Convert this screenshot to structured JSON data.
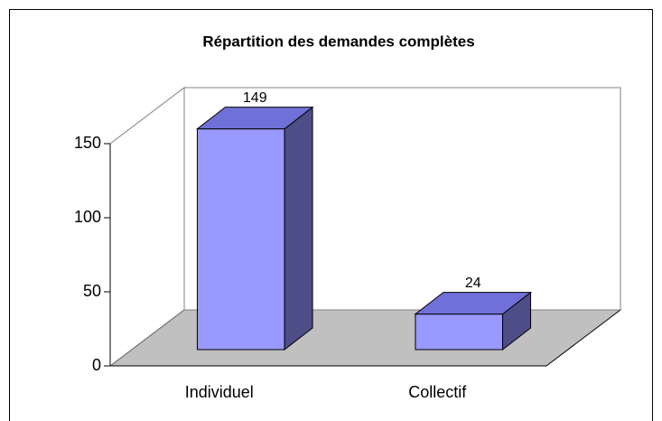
{
  "chart_data": {
    "type": "bar3d",
    "title": "Répartition des demandes complètes",
    "categories": [
      "Individuel",
      "Collectif"
    ],
    "values": [
      149,
      24
    ],
    "color": "#9999ff",
    "ylim": [
      0,
      150
    ],
    "yticks": [
      0,
      50,
      100,
      150
    ]
  }
}
